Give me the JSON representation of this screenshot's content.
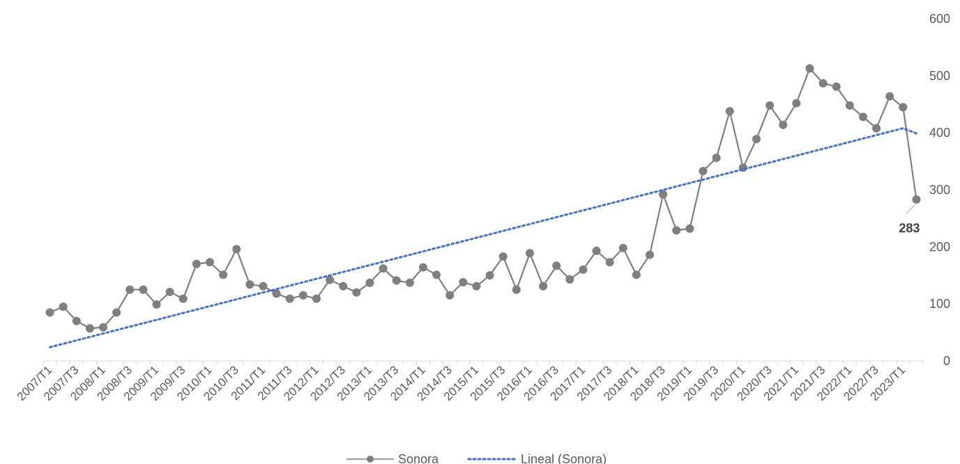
{
  "chart_data": {
    "type": "line",
    "title": "",
    "xlabel": "",
    "ylabel": "",
    "ylim": [
      0,
      600
    ],
    "y_ticks": [
      "0",
      "100",
      "200",
      "300",
      "400",
      "500",
      "600"
    ],
    "y_axis_side": "right",
    "grid": false,
    "legend_position": "bottom",
    "x": [
      "2007/T1",
      "2007/T2",
      "2007/T3",
      "2007/T4",
      "2008/T1",
      "2008/T2",
      "2008/T3",
      "2008/T4",
      "2009/T1",
      "2009/T2",
      "2009/T3",
      "2009/T4",
      "2010/T1",
      "2010/T2",
      "2010/T3",
      "2010/T4",
      "2011/T1",
      "2011/T2",
      "2011/T3",
      "2011/T4",
      "2012/T1",
      "2012/T2",
      "2012/T3",
      "2012/T4",
      "2013/T1",
      "2013/T2",
      "2013/T3",
      "2013/T4",
      "2014/T1",
      "2014/T2",
      "2014/T3",
      "2014/T4",
      "2015/T1",
      "2015/T2",
      "2015/T3",
      "2015/T4",
      "2016/T1",
      "2016/T2",
      "2016/T3",
      "2016/T4",
      "2017/T1",
      "2017/T2",
      "2017/T3",
      "2017/T4",
      "2018/T1",
      "2018/T2",
      "2018/T3",
      "2018/T4",
      "2019/T1",
      "2019/T2",
      "2019/T3",
      "2019/T4",
      "2020/T1",
      "2020/T2",
      "2020/T3",
      "2020/T4",
      "2021/T1",
      "2021/T2",
      "2021/T3",
      "2021/T4",
      "2022/T1",
      "2022/T2",
      "2022/T3",
      "2022/T4",
      "2023/T1",
      "2023/T2"
    ],
    "x_tick_labels": [
      "2007/T1",
      "2007/T3",
      "2008/T1",
      "2008/T3",
      "2009/T1",
      "2009/T3",
      "2010/T1",
      "2010/T3",
      "2011/T1",
      "2011/T3",
      "2012/T1",
      "2012/T3",
      "2013/T1",
      "2013/T3",
      "2014/T1",
      "2014/T3",
      "2015/T1",
      "2015/T3",
      "2016/T1",
      "2016/T3",
      "2017/T1",
      "2017/T3",
      "2018/T1",
      "2018/T3",
      "2019/T1",
      "2019/T3",
      "2020/T1",
      "2020/T3",
      "2021/T1",
      "2021/T3",
      "2022/T1",
      "2022/T3",
      "2023/T1"
    ],
    "series": [
      {
        "name": "Sonora",
        "style": "line-with-markers",
        "color": "#7f7f7f",
        "values": [
          85,
          95,
          70,
          57,
          59,
          85,
          125,
          125,
          99,
          121,
          109,
          170,
          173,
          151,
          196,
          134,
          131,
          118,
          109,
          115,
          109,
          142,
          131,
          120,
          137,
          162,
          141,
          137,
          164,
          151,
          115,
          138,
          131,
          150,
          183,
          125,
          189,
          131,
          167,
          143,
          160,
          193,
          173,
          198,
          151,
          186,
          292,
          229,
          232,
          333,
          356,
          438,
          339,
          389,
          448,
          414,
          452,
          513,
          487,
          481,
          448,
          428,
          408,
          464,
          445,
          283
        ]
      },
      {
        "name": "Lineal (Sonora)",
        "style": "dotted-trendline",
        "color": "#4472c4",
        "values": [
          24,
          30,
          36,
          42,
          48,
          54,
          60,
          66,
          72,
          78,
          84,
          90,
          96,
          102,
          108,
          114,
          120,
          126,
          132,
          138,
          144,
          150,
          156,
          162,
          168,
          174,
          180,
          186,
          192,
          198,
          204,
          210,
          216,
          222,
          228,
          234,
          240,
          246,
          252,
          258,
          264,
          270,
          276,
          282,
          288,
          294,
          300,
          306,
          312,
          318,
          324,
          330,
          336,
          342,
          348,
          354,
          360,
          366,
          372,
          378,
          384,
          390,
          396,
          402,
          408,
          399
        ]
      }
    ],
    "data_labels": [
      {
        "series": "Sonora",
        "x": "2023/T2",
        "text": "283"
      }
    ]
  },
  "legend": {
    "items": [
      {
        "label": "Sonora",
        "color": "#7f7f7f",
        "style": "line-with-marker"
      },
      {
        "label": "Lineal (Sonora)",
        "color": "#4472c4",
        "style": "dotted"
      }
    ]
  }
}
